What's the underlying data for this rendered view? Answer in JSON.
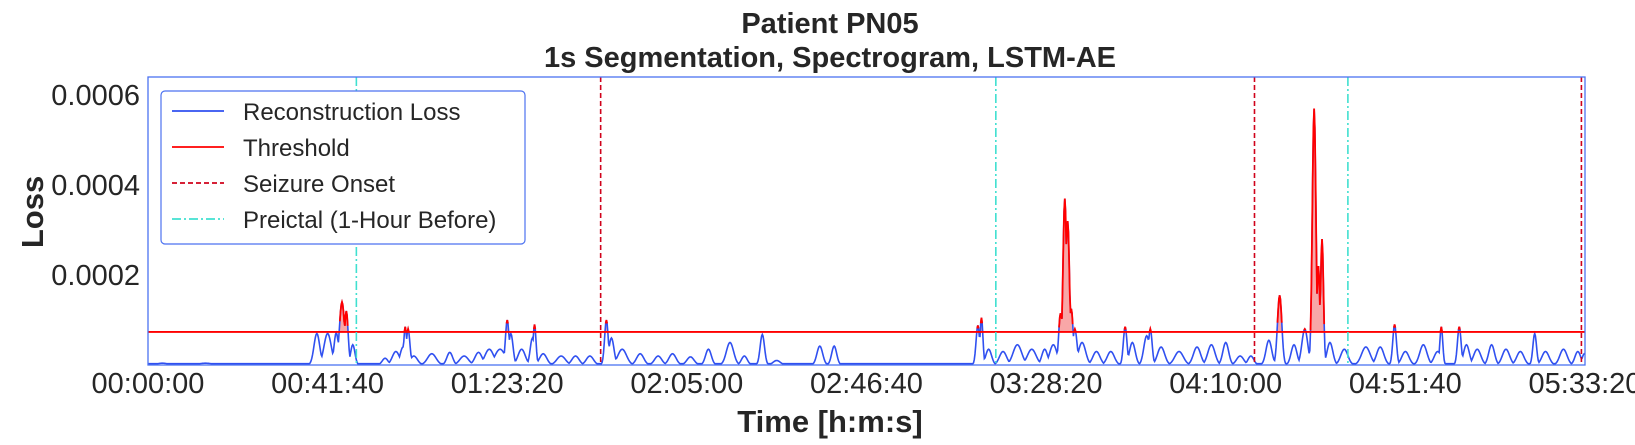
{
  "chart_data": {
    "type": "line",
    "title": "Patient PN05",
    "subtitle": "1s Segmentation, Spectrogram, LSTM-AE",
    "xlabel": "Time [h:m:s]",
    "ylabel": "Loss",
    "x_unit": "seconds",
    "xlim": [
      0,
      20000
    ],
    "ylim": [
      0,
      0.00064
    ],
    "x_ticks": [
      {
        "value": 0,
        "label": "00:00:00"
      },
      {
        "value": 2500,
        "label": "00:41:40"
      },
      {
        "value": 5000,
        "label": "01:23:20"
      },
      {
        "value": 7500,
        "label": "02:05:00"
      },
      {
        "value": 10000,
        "label": "02:46:40"
      },
      {
        "value": 12500,
        "label": "03:28:20"
      },
      {
        "value": 15000,
        "label": "04:10:00"
      },
      {
        "value": 17500,
        "label": "04:51:40"
      },
      {
        "value": 20000,
        "label": "05:33:20"
      }
    ],
    "y_ticks": [
      {
        "value": 0.0002,
        "label": "0.0002"
      },
      {
        "value": 0.0004,
        "label": "0.0004"
      },
      {
        "value": 0.0006,
        "label": "0.0006"
      }
    ],
    "legend": {
      "position": "upper-left",
      "entries": [
        {
          "label": "Reconstruction Loss",
          "color": "#3050f0",
          "style": "solid"
        },
        {
          "label": "Threshold",
          "color": "#ff0000",
          "style": "solid"
        },
        {
          "label": "Seizure Onset",
          "color": "#d0021b",
          "style": "dashed"
        },
        {
          "label": "Preictal (1-Hour Before)",
          "color": "#40e0d0",
          "style": "dashdot"
        }
      ]
    },
    "threshold": 7.35e-05,
    "seizure_onsets": [
      6300,
      15400,
      19950
    ],
    "preictal_starts": [
      2900,
      11800,
      16700
    ],
    "series": [
      {
        "name": "Reconstruction Loss",
        "color": "#3050f0",
        "baseline": 3e-06,
        "peaks": [
          [
            200,
            4e-06,
            80
          ],
          [
            800,
            4e-06,
            100
          ],
          [
            2350,
            7e-05,
            40
          ],
          [
            2500,
            7e-05,
            50
          ],
          [
            2620,
            7.2e-05,
            30
          ],
          [
            2700,
            0.00014,
            35
          ],
          [
            2760,
            0.00012,
            25
          ],
          [
            2850,
            4.5e-05,
            30
          ],
          [
            3300,
            1.5e-05,
            40
          ],
          [
            3450,
            3e-05,
            50
          ],
          [
            3550,
            4e-05,
            40
          ],
          [
            3580,
            8.5e-05,
            20
          ],
          [
            3620,
            8e-05,
            25
          ],
          [
            3700,
            2e-05,
            50
          ],
          [
            3950,
            2.5e-05,
            60
          ],
          [
            4200,
            2.8e-05,
            40
          ],
          [
            4400,
            2e-05,
            60
          ],
          [
            4600,
            2.8e-05,
            50
          ],
          [
            4750,
            3.5e-05,
            60
          ],
          [
            4900,
            3.5e-05,
            70
          ],
          [
            5000,
            0.0001,
            25
          ],
          [
            5050,
            7e-05,
            30
          ],
          [
            5200,
            3.5e-05,
            50
          ],
          [
            5350,
            6e-05,
            30
          ],
          [
            5380,
            9e-05,
            20
          ],
          [
            5500,
            2.5e-05,
            50
          ],
          [
            5750,
            2e-05,
            60
          ],
          [
            5950,
            2e-05,
            50
          ],
          [
            6150,
            2e-05,
            50
          ],
          [
            6380,
            0.0001,
            25
          ],
          [
            6450,
            6e-05,
            35
          ],
          [
            6600,
            3.5e-05,
            60
          ],
          [
            6850,
            2.5e-05,
            50
          ],
          [
            7100,
            2e-05,
            50
          ],
          [
            7300,
            2.5e-05,
            50
          ],
          [
            7550,
            1.8e-05,
            50
          ],
          [
            7800,
            3.5e-05,
            40
          ],
          [
            8100,
            5e-05,
            50
          ],
          [
            8300,
            2e-05,
            40
          ],
          [
            8550,
            6.8e-05,
            30
          ],
          [
            8750,
            1e-05,
            50
          ],
          [
            9350,
            4.2e-05,
            40
          ],
          [
            9550,
            4.2e-05,
            35
          ],
          [
            11550,
            8.8e-05,
            25
          ],
          [
            11600,
            0.000105,
            20
          ],
          [
            11700,
            3.5e-05,
            40
          ],
          [
            11900,
            3e-05,
            50
          ],
          [
            12100,
            4.5e-05,
            60
          ],
          [
            12300,
            3.5e-05,
            60
          ],
          [
            12480,
            3.5e-05,
            40
          ],
          [
            12600,
            4.5e-05,
            50
          ],
          [
            12700,
            0.000115,
            25
          ],
          [
            12760,
            0.00037,
            25
          ],
          [
            12800,
            0.00032,
            25
          ],
          [
            12850,
            0.000125,
            25
          ],
          [
            12900,
            8e-05,
            30
          ],
          [
            13000,
            5e-05,
            50
          ],
          [
            13200,
            3e-05,
            50
          ],
          [
            13400,
            3e-05,
            50
          ],
          [
            13600,
            8.5e-05,
            25
          ],
          [
            13700,
            5e-05,
            40
          ],
          [
            13900,
            6.5e-05,
            40
          ],
          [
            13950,
            8e-05,
            25
          ],
          [
            14100,
            4e-05,
            50
          ],
          [
            14350,
            3e-05,
            60
          ],
          [
            14600,
            4e-05,
            50
          ],
          [
            14800,
            4.5e-05,
            50
          ],
          [
            15000,
            5e-05,
            40
          ],
          [
            15200,
            2e-05,
            50
          ],
          [
            15350,
            2e-05,
            40
          ],
          [
            15600,
            5.5e-05,
            40
          ],
          [
            15750,
            0.000155,
            30
          ],
          [
            15950,
            4.5e-05,
            40
          ],
          [
            16100,
            8e-05,
            40
          ],
          [
            16230,
            0.00057,
            25
          ],
          [
            16290,
            0.00022,
            20
          ],
          [
            16340,
            0.00028,
            20
          ],
          [
            16450,
            5e-05,
            40
          ],
          [
            16650,
            3.5e-05,
            50
          ],
          [
            16950,
            4e-05,
            60
          ],
          [
            17150,
            4e-05,
            50
          ],
          [
            17350,
            9e-05,
            25
          ],
          [
            17500,
            3e-05,
            50
          ],
          [
            17750,
            4.5e-05,
            50
          ],
          [
            17950,
            3e-05,
            50
          ],
          [
            18000,
            8.5e-05,
            20
          ],
          [
            18250,
            8.5e-05,
            25
          ],
          [
            18350,
            4.5e-05,
            40
          ],
          [
            18500,
            3.5e-05,
            50
          ],
          [
            18700,
            4.5e-05,
            40
          ],
          [
            18900,
            3.5e-05,
            50
          ],
          [
            19100,
            3e-05,
            50
          ],
          [
            19300,
            7e-05,
            25
          ],
          [
            19450,
            3e-05,
            50
          ],
          [
            19700,
            3.5e-05,
            50
          ],
          [
            19900,
            3e-05,
            40
          ],
          [
            19990,
            2.5e-05,
            30
          ]
        ]
      }
    ]
  }
}
